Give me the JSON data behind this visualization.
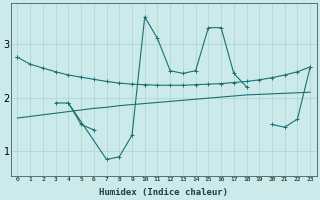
{
  "xlabel": "Humidex (Indice chaleur)",
  "x_values": [
    0,
    1,
    2,
    3,
    4,
    5,
    6,
    7,
    8,
    9,
    10,
    11,
    12,
    13,
    14,
    15,
    16,
    17,
    18,
    19,
    20,
    21,
    22,
    23
  ],
  "line_smooth_y": [
    2.75,
    2.62,
    2.55,
    2.48,
    2.42,
    2.38,
    2.34,
    2.3,
    2.27,
    2.25,
    2.24,
    2.23,
    2.23,
    2.23,
    2.24,
    2.25,
    2.26,
    2.28,
    2.3,
    2.33,
    2.37,
    2.42,
    2.48,
    2.57
  ],
  "line_linear_y": [
    1.62,
    1.65,
    1.68,
    1.71,
    1.74,
    1.77,
    1.8,
    1.82,
    1.85,
    1.87,
    1.89,
    1.91,
    1.93,
    1.95,
    1.97,
    1.99,
    2.01,
    2.03,
    2.05,
    2.06,
    2.07,
    2.08,
    2.09,
    2.1
  ],
  "line_zigzag_segments": [
    {
      "x": [
        0
      ],
      "y": [
        2.75
      ]
    },
    {
      "x": [
        3,
        4,
        7,
        8,
        9,
        10,
        11,
        12,
        13,
        14,
        15,
        16,
        17,
        18
      ],
      "y": [
        1.9,
        1.9,
        0.85,
        0.9,
        1.3,
        3.5,
        3.1,
        2.5,
        2.45,
        2.5,
        3.3,
        3.3,
        2.45,
        2.2
      ]
    },
    {
      "x": [
        20,
        21,
        22,
        23
      ],
      "y": [
        1.5,
        1.45,
        1.6,
        2.57
      ]
    }
  ],
  "line_sub_y": [
    null,
    null,
    null,
    null,
    1.9,
    1.5,
    1.4,
    null,
    null,
    null,
    null,
    null,
    null,
    null,
    null,
    null,
    null,
    null,
    null,
    null,
    null,
    null,
    null,
    null
  ],
  "bg_color": "#cceaea",
  "grid_color": "#aad4d4",
  "line_color": "#1a7070",
  "yticks": [
    1,
    2,
    3
  ],
  "ylim": [
    0.55,
    3.75
  ],
  "xlim": [
    -0.5,
    23.5
  ]
}
